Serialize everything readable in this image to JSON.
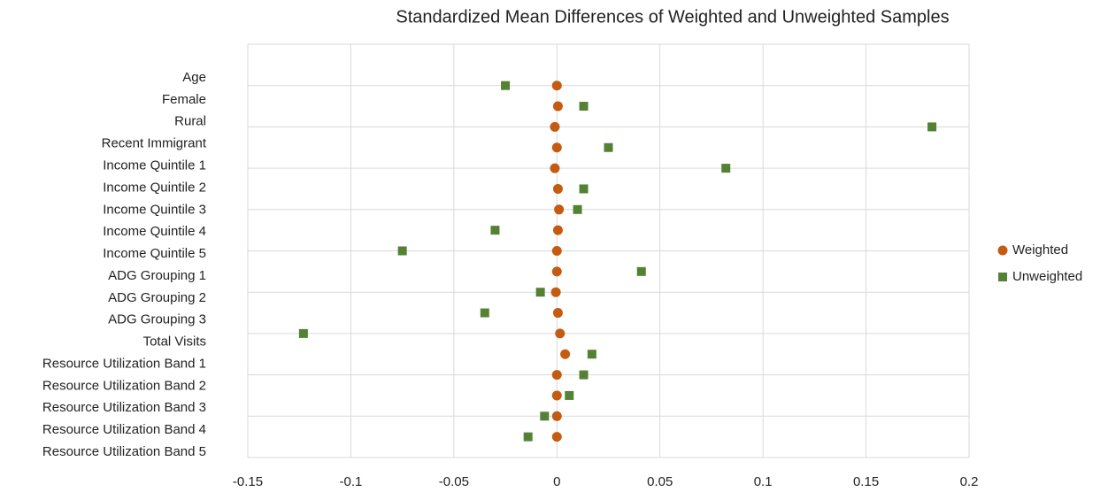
{
  "chart_data": {
    "type": "dot",
    "title": "Standardized Mean Differences of Weighted and Unweighted Samples",
    "categories": [
      "Age",
      "Female",
      "Rural",
      "Recent Immigrant",
      "Income Quintile 1",
      "Income Quintile 2",
      "Income Quintile 3",
      "Income Quintile 4",
      "Income Quintile 5",
      "ADG Grouping 1",
      "ADG Grouping 2",
      "ADG Grouping 3",
      "Total Visits",
      "Resource Utilization Band 1",
      "Resource Utilization Band 2",
      "Resource Utilization Band 3",
      "Resource Utilization Band 4",
      "Resource Utilization Band 5"
    ],
    "series": [
      {
        "name": "Weighted",
        "color": "#c55a11",
        "marker": "circle",
        "values": [
          0,
          0.0005,
          -0.001,
          0,
          -0.001,
          0.0005,
          0.001,
          0.0005,
          0,
          0,
          -0.0005,
          0.0005,
          0.0015,
          0.004,
          0,
          0,
          0,
          0
        ]
      },
      {
        "name": "Unweighted",
        "color": "#548235",
        "marker": "square",
        "values": [
          -0.025,
          0.013,
          0.182,
          0.025,
          0.082,
          0.013,
          0.01,
          -0.03,
          -0.075,
          0.041,
          -0.008,
          -0.035,
          -0.123,
          0.017,
          0.013,
          0.006,
          -0.006,
          -0.014
        ]
      }
    ],
    "xlim": [
      -0.15,
      0.2
    ],
    "xticks": [
      -0.15,
      -0.1,
      -0.05,
      0,
      0.05,
      0.1,
      0.15,
      0.2
    ],
    "grid": true,
    "legend": "right"
  }
}
